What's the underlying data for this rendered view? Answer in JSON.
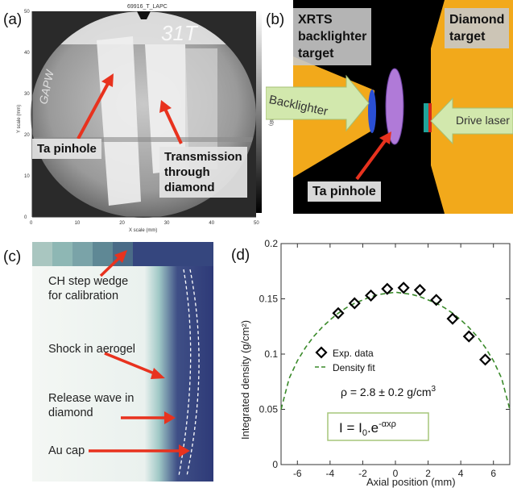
{
  "panels": {
    "a": {
      "label": "(a)",
      "header": "69916_T_LAPC",
      "scrawl": "31T",
      "side_scrawl": "GAPW",
      "y_axis_label": "Y scale (mm)",
      "x_axis_label": "X scale (mm)",
      "colorbar_label": "Intensity (BB)",
      "x_ticks": [
        "0",
        "10",
        "20",
        "30",
        "40",
        "50"
      ],
      "y_ticks": [
        "0",
        "10",
        "20",
        "30",
        "40",
        "50"
      ],
      "callouts": {
        "pinhole": "Ta pinhole",
        "transmission": [
          "Transmission",
          "through",
          "diamond"
        ]
      }
    },
    "b": {
      "label": "(b)",
      "callouts": {
        "xrts": [
          "XRTS",
          "backlighter",
          "target"
        ],
        "diamond": [
          "Diamond",
          "target"
        ],
        "backlighter": "Backlighter",
        "drive_laser": "Drive laser",
        "pinhole": "Ta pinhole"
      }
    },
    "c": {
      "label": "(c)",
      "labels": {
        "step_wedge": [
          "CH step wedge",
          "for calibration"
        ],
        "shock": "Shock in aerogel",
        "release": [
          "Release wave in",
          "diamond"
        ],
        "au_cap": "Au cap"
      }
    },
    "d": {
      "label": "(d)"
    }
  },
  "colors": {
    "accent_red": "#e8321e",
    "target_gold": "#f2a91b",
    "fit_green": "#3a8a2a",
    "image_navy": "#2e3a78"
  },
  "chart_data": {
    "type": "scatter",
    "xlabel": "Axial position (mm)",
    "ylabel": "Integrated density (g/cm²)",
    "xlim": [
      -7,
      7
    ],
    "ylim": [
      0,
      0.2
    ],
    "x_ticks": [
      "-6",
      "-4",
      "-2",
      "0",
      "2",
      "4",
      "6"
    ],
    "y_ticks": [
      "0",
      "0.05",
      "0.1",
      "0.15",
      "0.2"
    ],
    "grid": false,
    "legend_position": "center-left",
    "series": [
      {
        "name": "Exp. data",
        "kind": "scatter",
        "marker": "diamond",
        "x": [
          -3.5,
          -2.5,
          -1.5,
          -0.5,
          0.5,
          1.5,
          2.5,
          3.5,
          4.5,
          5.5
        ],
        "y": [
          0.137,
          0.146,
          0.153,
          0.159,
          0.16,
          0.158,
          0.149,
          0.132,
          0.116,
          0.095
        ]
      },
      {
        "name": "Density fit",
        "kind": "line",
        "style": "dashed",
        "x": [
          -7.0,
          -6.5,
          -6.0,
          -5.5,
          -5.0,
          -4.5,
          -4.0,
          -3.5,
          -3.0,
          -2.5,
          -2.0,
          -1.5,
          -1.0,
          -0.5,
          0.0,
          0.5,
          1.0,
          1.5,
          2.0,
          2.5,
          3.0,
          3.5,
          4.0,
          4.5,
          5.0,
          5.5,
          6.0,
          6.5,
          7.0
        ],
        "y": [
          0.05,
          0.078,
          0.094,
          0.106,
          0.116,
          0.124,
          0.131,
          0.137,
          0.142,
          0.146,
          0.149,
          0.152,
          0.154,
          0.155,
          0.156,
          0.155,
          0.154,
          0.152,
          0.149,
          0.146,
          0.142,
          0.137,
          0.131,
          0.124,
          0.116,
          0.106,
          0.094,
          0.078,
          0.05
        ]
      }
    ],
    "annotations": {
      "rho_prefix": "ρ = 2.8 ± 0.2 g/cm",
      "rho_exp": "3"
    }
  }
}
